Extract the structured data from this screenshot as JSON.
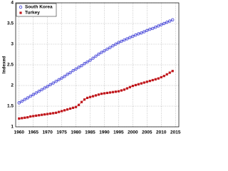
{
  "chart_data": {
    "type": "line",
    "ylabel": "Indexed",
    "x": [
      1960,
      1961,
      1962,
      1963,
      1964,
      1965,
      1966,
      1967,
      1968,
      1969,
      1970,
      1971,
      1972,
      1973,
      1974,
      1975,
      1976,
      1977,
      1978,
      1979,
      1980,
      1981,
      1982,
      1983,
      1984,
      1985,
      1986,
      1987,
      1988,
      1989,
      1990,
      1991,
      1992,
      1993,
      1994,
      1995,
      1996,
      1997,
      1998,
      1999,
      2000,
      2001,
      2002,
      2003,
      2004,
      2005,
      2006,
      2007,
      2008,
      2009,
      2010,
      2011,
      2012,
      2013,
      2014
    ],
    "series": [
      {
        "name": "South Korea",
        "color": "#3b3bd6",
        "marker": "circle",
        "values": [
          1.58,
          1.62,
          1.66,
          1.7,
          1.74,
          1.78,
          1.82,
          1.86,
          1.9,
          1.94,
          1.98,
          2.02,
          2.06,
          2.1,
          2.14,
          2.18,
          2.22,
          2.27,
          2.31,
          2.36,
          2.4,
          2.44,
          2.48,
          2.53,
          2.57,
          2.61,
          2.66,
          2.71,
          2.76,
          2.8,
          2.84,
          2.88,
          2.92,
          2.96,
          3.0,
          3.04,
          3.07,
          3.1,
          3.13,
          3.16,
          3.19,
          3.22,
          3.25,
          3.27,
          3.3,
          3.33,
          3.36,
          3.38,
          3.41,
          3.44,
          3.47,
          3.5,
          3.53,
          3.56,
          3.59
        ]
      },
      {
        "name": "Turkey",
        "color": "#c0161b",
        "marker": "square",
        "values": [
          1.2,
          1.21,
          1.22,
          1.23,
          1.25,
          1.26,
          1.27,
          1.28,
          1.29,
          1.3,
          1.31,
          1.32,
          1.33,
          1.34,
          1.36,
          1.38,
          1.4,
          1.42,
          1.44,
          1.46,
          1.48,
          1.53,
          1.6,
          1.66,
          1.7,
          1.72,
          1.74,
          1.76,
          1.78,
          1.8,
          1.81,
          1.82,
          1.83,
          1.84,
          1.85,
          1.86,
          1.88,
          1.9,
          1.93,
          1.96,
          1.99,
          2.01,
          2.03,
          2.05,
          2.07,
          2.09,
          2.11,
          2.13,
          2.15,
          2.17,
          2.2,
          2.23,
          2.27,
          2.31,
          2.35
        ]
      }
    ],
    "xlim": [
      1958.8,
      2016.2
    ],
    "xticks": [
      1960,
      1965,
      1970,
      1975,
      1980,
      1985,
      1990,
      1995,
      2000,
      2005,
      2010,
      2015
    ],
    "ylim": [
      1,
      4
    ],
    "yticks": [
      1,
      1.5,
      2,
      2.5,
      3,
      3.5,
      4
    ],
    "grid": true,
    "legend": "upper-left"
  }
}
